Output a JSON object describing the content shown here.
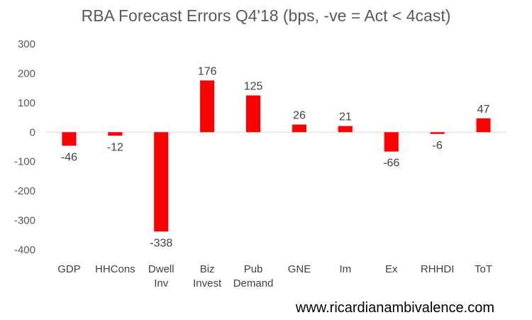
{
  "chart_data": {
    "type": "bar",
    "title": "RBA Forecast Errors Q4'18 (bps, -ve = Act < 4cast)",
    "xlabel": "",
    "ylabel": "",
    "ylim": [
      -400,
      300
    ],
    "yticks": [
      300,
      200,
      100,
      0,
      -100,
      -200,
      -300,
      -400
    ],
    "ytick_labels": [
      "300",
      "200",
      "100",
      "0",
      "-100",
      "-200",
      "-300",
      "-400"
    ],
    "grid": false,
    "legend": "none",
    "bar_color": "#ff0000",
    "categories": [
      [
        "GDP"
      ],
      [
        "HHCons"
      ],
      [
        "Dwell",
        "Inv"
      ],
      [
        "Biz",
        "Invest"
      ],
      [
        "Pub",
        "Demand"
      ],
      [
        "GNE"
      ],
      [
        "Im"
      ],
      [
        "Ex"
      ],
      [
        "RHHDI"
      ],
      [
        "ToT"
      ]
    ],
    "values": [
      -46,
      -12,
      -338,
      176,
      125,
      26,
      21,
      -66,
      -6,
      47
    ],
    "data_labels": [
      "-46",
      "-12",
      "-338",
      "176",
      "125",
      "26",
      "21",
      "-66",
      "-6",
      "47"
    ]
  },
  "footer": {
    "source_url": "www.ricardianambivalence.com"
  }
}
